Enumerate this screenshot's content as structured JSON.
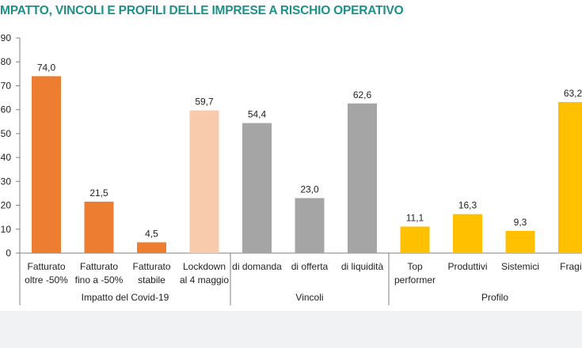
{
  "chart_data": {
    "type": "bar",
    "title": "MPATTO, VINCOLI E PROFILI DELLE IMPRESE A RISCHIO OPERATIVO",
    "ylim": [
      0,
      90
    ],
    "yticks": [
      "0",
      "10",
      "20",
      "30",
      "40",
      "50",
      "60",
      "70",
      "80",
      "90"
    ],
    "grid": false,
    "bars": [
      {
        "label": [
          "Fatturato",
          "oltre -50%"
        ],
        "value": 74.0,
        "display": "74,0",
        "color": "#ed7d31",
        "group": 0
      },
      {
        "label": [
          "Fatturato",
          "fino a -50%"
        ],
        "value": 21.5,
        "display": "21,5",
        "color": "#ed7d31",
        "group": 0
      },
      {
        "label": [
          "Fatturato",
          "stabile"
        ],
        "value": 4.5,
        "display": "4,5",
        "color": "#ed7d31",
        "group": 0
      },
      {
        "label": [
          "Lockdown",
          "al 4 maggio"
        ],
        "value": 59.7,
        "display": "59,7",
        "color": "#f8cbad",
        "group": 0
      },
      {
        "label": [
          "di domanda"
        ],
        "value": 54.4,
        "display": "54,4",
        "color": "#a5a5a5",
        "group": 1
      },
      {
        "label": [
          "di offerta"
        ],
        "value": 23.0,
        "display": "23,0",
        "color": "#a5a5a5",
        "group": 1
      },
      {
        "label": [
          "di liquidità"
        ],
        "value": 62.6,
        "display": "62,6",
        "color": "#a5a5a5",
        "group": 1
      },
      {
        "label": [
          "Top",
          "performer"
        ],
        "value": 11.1,
        "display": "11,1",
        "color": "#ffc000",
        "group": 2
      },
      {
        "label": [
          "Produttivi"
        ],
        "value": 16.3,
        "display": "16,3",
        "color": "#ffc000",
        "group": 2
      },
      {
        "label": [
          "Sistemici"
        ],
        "value": 9.3,
        "display": "9,3",
        "color": "#ffc000",
        "group": 2
      },
      {
        "label": [
          "Fragili"
        ],
        "value": 63.2,
        "display": "63,2",
        "color": "#ffc000",
        "group": 2
      }
    ],
    "groups": [
      "Impatto del Covid-19",
      "Vincoli",
      "Profilo"
    ]
  }
}
